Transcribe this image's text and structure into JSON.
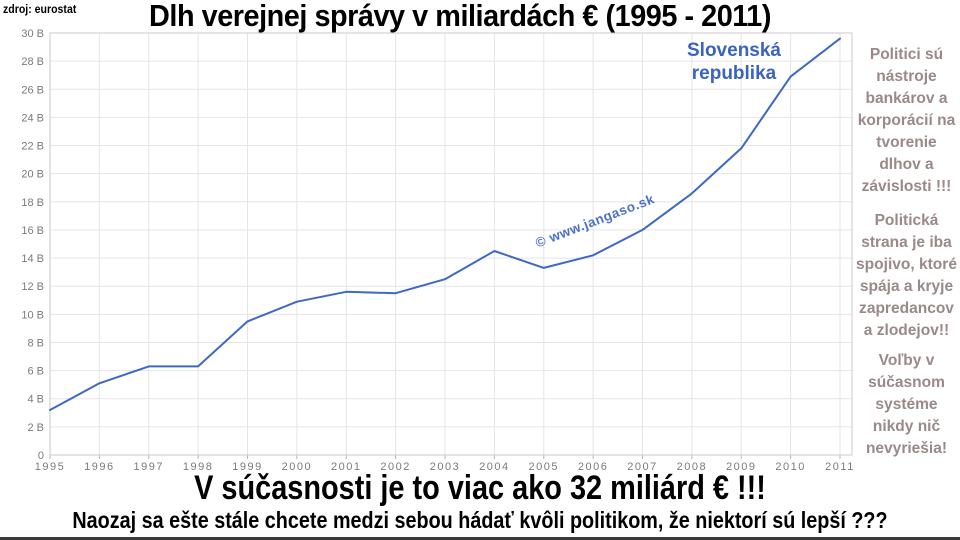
{
  "page": {
    "source_label": "zdroj: eurostat",
    "title": "Dlh verejnej správy v miliardách € (1995 - 2011)"
  },
  "chart_annotations": {
    "series_label": "Slovenská\nrepublika",
    "watermark": "© www.jangaso.sk"
  },
  "right_column": {
    "blocks": [
      "Politici sú\nnástroje\nbankárov a\nkorporácií na\ntvorenie\ndlhov a\nzávislosti !!!",
      "Politická\nstrana je iba\nspojivo, ktoré\nspája a kryje\nzapredancov\na zlodejov!!",
      "Voľby v\nsúčasnom\nsystéme\nnikdy nič\nnevyriešia!"
    ]
  },
  "footer": {
    "headline": "V súčasnosti je to viac ako 32 miliárd € !!!",
    "subline": "Naozaj sa ešte stále chcete medzi sebou hádať kvôli politikom, že niektorí sú lepší ???"
  },
  "colors": {
    "accent_blue": "#3a62c3",
    "line_blue": "#3f68c5",
    "muted_text": "#9a8989",
    "axis_text": "#7a7a7a",
    "gridline": "#e5e5e5",
    "plot_border": "#c9c9c9",
    "axis_baseline": "#b5b5b5"
  },
  "chart_data": {
    "type": "line",
    "title": "Dlh verejnej správy v miliardách € (1995 - 2011)",
    "x": [
      1995,
      1996,
      1997,
      1998,
      1999,
      2000,
      2001,
      2002,
      2003,
      2004,
      2005,
      2006,
      2007,
      2008,
      2009,
      2010,
      2011
    ],
    "series": [
      {
        "name": "Slovenská republika",
        "values": [
          3.2,
          5.1,
          6.3,
          6.3,
          9.5,
          10.9,
          11.6,
          11.5,
          12.5,
          14.5,
          13.3,
          14.2,
          16.0,
          18.6,
          21.8,
          26.9,
          29.6
        ]
      }
    ],
    "xlabel": "",
    "ylabel": "",
    "ylim": [
      0,
      30
    ],
    "ytick_values": [
      0,
      2,
      4,
      6,
      8,
      10,
      12,
      14,
      16,
      18,
      20,
      22,
      24,
      26,
      28,
      30
    ],
    "ytick_labels": [
      "0",
      "2 B",
      "4 B",
      "6 B",
      "8 B",
      "10 B",
      "12 B",
      "14 B",
      "16 B",
      "18 B",
      "20 B",
      "22 B",
      "24 B",
      "26 B",
      "28 B",
      "30 B"
    ],
    "grid": true,
    "legend": "none"
  }
}
